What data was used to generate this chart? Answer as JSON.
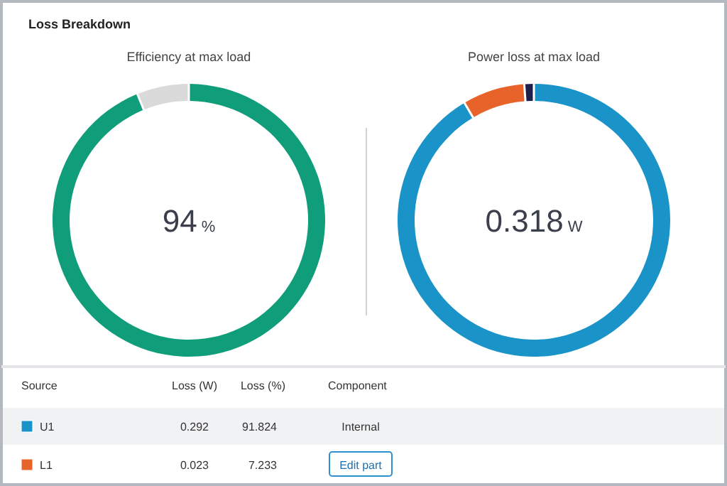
{
  "chart_data": [
    {
      "type": "donut",
      "title": "Efficiency at max load",
      "categories": [
        null,
        null
      ],
      "values": [
        94,
        6
      ],
      "colors": [
        "#0f9d7a",
        "#dadada"
      ],
      "annotations": [
        "94",
        "%"
      ]
    },
    {
      "type": "donut",
      "title": "Power loss at max load",
      "categories": [
        "U1",
        "L1",
        null
      ],
      "values": [
        91.824,
        7.233,
        0.943
      ],
      "colors": [
        "#1a93c9",
        "#e8632a",
        "#1d1f4a"
      ],
      "value_labels": [
        "91.824",
        "7.233",
        null
      ],
      "annotations": [
        "0.318",
        "W"
      ]
    },
    {
      "type": "other",
      "title": "Loss Breakdown",
      "annotations": [
        "Source",
        "Loss (W)",
        "Loss (%)",
        "Component",
        "0.292",
        "Internal",
        "0.023",
        "Edit part"
      ]
    }
  ]
}
